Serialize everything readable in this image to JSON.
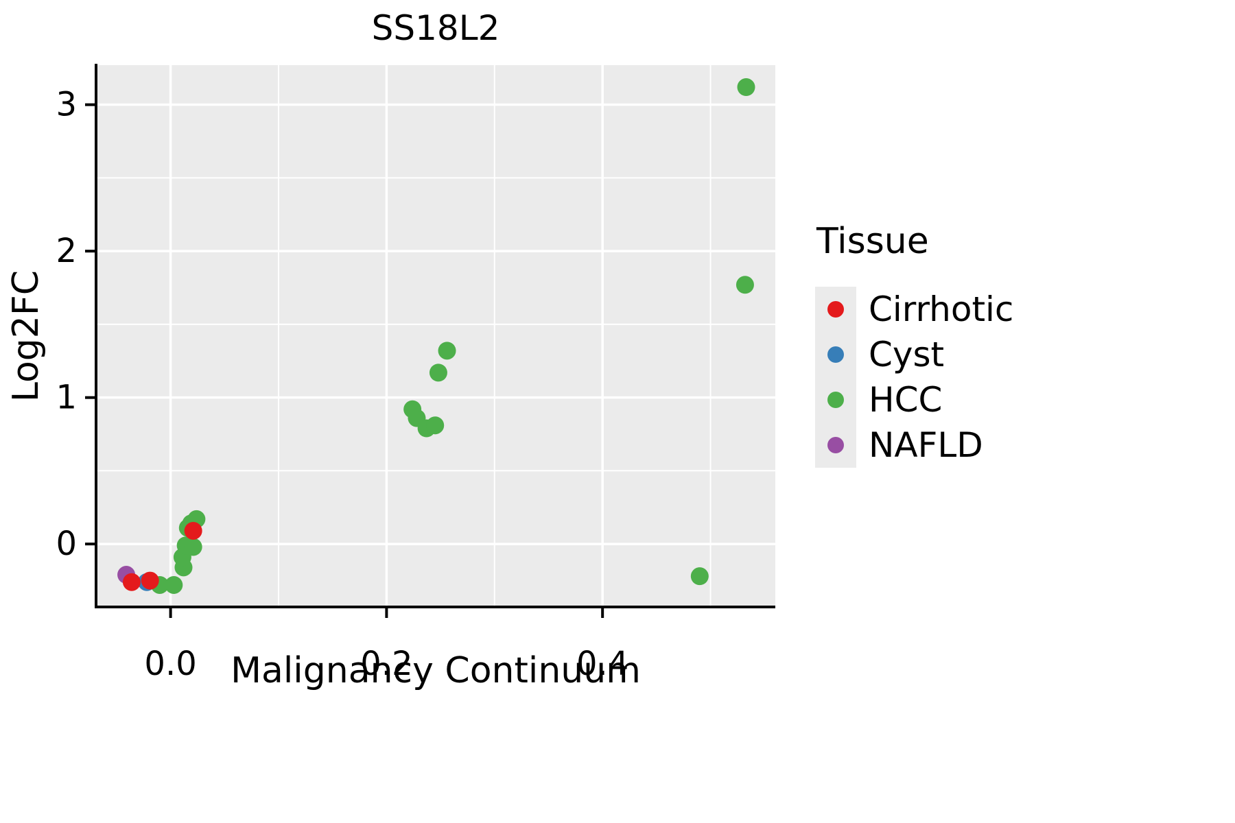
{
  "title": "SS18L2",
  "axes": {
    "xlabel": "Malignancy Continuum",
    "ylabel": "Log2FC",
    "x_ticks": {
      "values": [
        0.0,
        0.2,
        0.4
      ],
      "labels": [
        "0.0",
        "0.2",
        "0.4"
      ],
      "minor": [
        0.1,
        0.3,
        0.5
      ]
    },
    "y_ticks": {
      "values": [
        0,
        1,
        2,
        3
      ],
      "labels": [
        "0",
        "1",
        "2",
        "3"
      ],
      "minor": [
        0.5,
        1.5,
        2.5
      ]
    }
  },
  "legend": {
    "title": "Tissue",
    "position": "right"
  },
  "colors": {
    "panel_bg": "#ebebeb",
    "grid": "#ffffff",
    "spine": "#000000",
    "text": "#000000",
    "legend_key_bg": "#ebebeb"
  },
  "chart_data": {
    "type": "scatter",
    "title": "SS18L2",
    "xlabel": "Malignancy Continuum",
    "ylabel": "Log2FC",
    "xlim": [
      -0.069,
      0.56
    ],
    "ylim": [
      -0.43,
      3.27
    ],
    "grid": "on",
    "legend_title": "Tissue",
    "legend_position": "right",
    "series": [
      {
        "name": "Cirrhotic",
        "color": "#e41a1c",
        "points": [
          [
            -0.036,
            -0.26
          ],
          [
            -0.019,
            -0.25
          ],
          [
            0.021,
            0.09
          ]
        ]
      },
      {
        "name": "Cyst",
        "color": "#377eb8",
        "points": [
          [
            -0.022,
            -0.26
          ]
        ]
      },
      {
        "name": "HCC",
        "color": "#4daf4a",
        "points": [
          [
            -0.01,
            -0.28
          ],
          [
            0.003,
            -0.28
          ],
          [
            0.012,
            -0.16
          ],
          [
            0.011,
            -0.09
          ],
          [
            0.014,
            -0.01
          ],
          [
            0.021,
            -0.02
          ],
          [
            0.016,
            0.11
          ],
          [
            0.019,
            0.14
          ],
          [
            0.024,
            0.17
          ],
          [
            0.224,
            0.92
          ],
          [
            0.228,
            0.86
          ],
          [
            0.237,
            0.79
          ],
          [
            0.245,
            0.81
          ],
          [
            0.248,
            1.17
          ],
          [
            0.256,
            1.32
          ],
          [
            0.49,
            -0.22
          ],
          [
            0.532,
            1.77
          ],
          [
            0.533,
            3.12
          ]
        ]
      },
      {
        "name": "NAFLD",
        "color": "#984ea3",
        "points": [
          [
            -0.041,
            -0.21
          ]
        ]
      }
    ]
  }
}
